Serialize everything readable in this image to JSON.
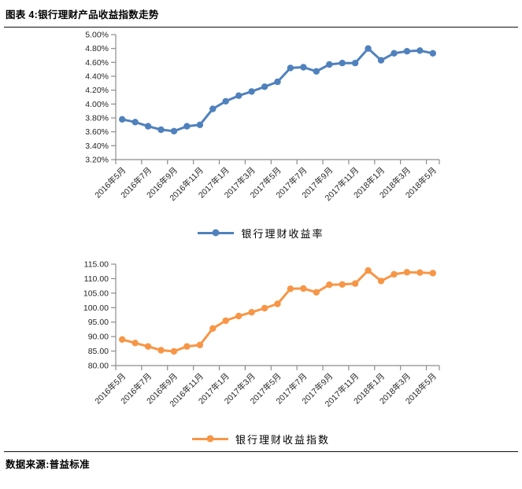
{
  "header": {
    "title": "图表 4:银行理财产品收益指数走势"
  },
  "footer": {
    "source": "数据来源:普益标准"
  },
  "colors": {
    "rate_series": "#4F81BD",
    "index_series": "#F79646",
    "axis": "#8C8C8C",
    "tick_text": "#262626"
  },
  "chart_data": [
    {
      "type": "line",
      "x": [
        "2016年5月",
        "2016年6月",
        "2016年7月",
        "2016年8月",
        "2016年9月",
        "2016年10月",
        "2016年11月",
        "2016年12月",
        "2017年1月",
        "2017年2月",
        "2017年3月",
        "2017年4月",
        "2017年5月",
        "2017年6月",
        "2017年7月",
        "2017年8月",
        "2017年9月",
        "2017年10月",
        "2017年11月",
        "2017年12月",
        "2018年1月",
        "2018年2月",
        "2018年3月",
        "2018年4月",
        "2018年5月"
      ],
      "x_tick_labels": [
        "2016年5月",
        "2016年7月",
        "2016年9月",
        "2016年11月",
        "2017年1月",
        "2017年3月",
        "2017年5月",
        "2017年7月",
        "2017年9月",
        "2017年11月",
        "2018年1月",
        "2018年3月",
        "2018年5月"
      ],
      "x_tick_interval": 2,
      "series": [
        {
          "name": "银行理财收益率",
          "color": "#4F81BD",
          "values": [
            3.78,
            3.74,
            3.68,
            3.63,
            3.61,
            3.68,
            3.7,
            3.93,
            4.04,
            4.12,
            4.18,
            4.25,
            4.32,
            4.52,
            4.53,
            4.47,
            4.57,
            4.59,
            4.59,
            4.8,
            4.63,
            4.73,
            4.76,
            4.77,
            4.73
          ]
        }
      ],
      "ylim": [
        3.2,
        5.0
      ],
      "ytick_step": 0.2,
      "yticks": [
        "3.20%",
        "3.40%",
        "3.60%",
        "3.80%",
        "4.00%",
        "4.20%",
        "4.40%",
        "4.60%",
        "4.80%",
        "5.00%"
      ],
      "grid": false,
      "legend_position": "bottom",
      "legend_label": "银行理财收益率"
    },
    {
      "type": "line",
      "x": [
        "2016年5月",
        "2016年6月",
        "2016年7月",
        "2016年8月",
        "2016年9月",
        "2016年10月",
        "2016年11月",
        "2016年12月",
        "2017年1月",
        "2017年2月",
        "2017年3月",
        "2017年4月",
        "2017年5月",
        "2017年6月",
        "2017年7月",
        "2017年8月",
        "2017年9月",
        "2017年10月",
        "2017年11月",
        "2017年12月",
        "2018年1月",
        "2018年2月",
        "2018年3月",
        "2018年4月",
        "2018年5月"
      ],
      "x_tick_labels": [
        "2016年5月",
        "2016年7月",
        "2016年9月",
        "2016年11月",
        "2017年1月",
        "2017年3月",
        "2017年5月",
        "2017年7月",
        "2017年9月",
        "2017年11月",
        "2018年1月",
        "2018年3月",
        "2018年5月"
      ],
      "x_tick_interval": 2,
      "series": [
        {
          "name": "银行理财收益指数",
          "color": "#F79646",
          "values": [
            89.0,
            87.8,
            86.6,
            85.3,
            84.9,
            86.6,
            87.1,
            92.8,
            95.5,
            97.1,
            98.4,
            99.8,
            101.3,
            106.5,
            106.6,
            105.3,
            107.9,
            108.0,
            108.3,
            112.8,
            109.2,
            111.5,
            112.2,
            112.1,
            111.9
          ]
        }
      ],
      "ylim": [
        80,
        115
      ],
      "ytick_step": 5,
      "yticks": [
        "80.00",
        "85.00",
        "90.00",
        "95.00",
        "100.00",
        "105.00",
        "110.00",
        "115.00"
      ],
      "grid": false,
      "legend_position": "bottom",
      "legend_label": "银行理财收益指数"
    }
  ]
}
